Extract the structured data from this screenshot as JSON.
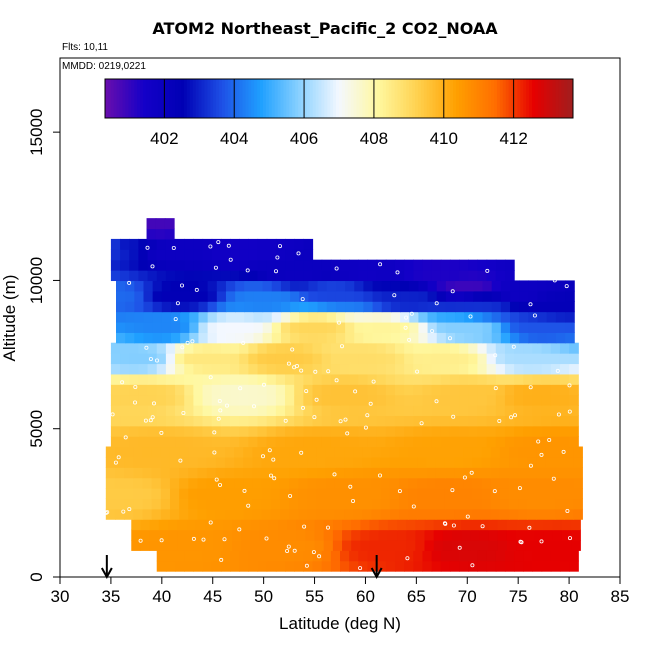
{
  "title": "ATOM2 Northeast_Pacific_2 CO2_NOAA",
  "flights_text": "Flts: 10,11",
  "mmdd_text": "MMDD: 0219,0221",
  "chart_data": {
    "type": "heatmap",
    "title": "ATOM2 Northeast_Pacific_2 CO2_NOAA",
    "xlabel": "Latitude (deg N)",
    "ylabel": "Altitude (m)",
    "xlim": [
      30,
      85
    ],
    "ylim": [
      0,
      17500
    ],
    "x_ticks": [
      30,
      35,
      40,
      45,
      50,
      55,
      60,
      65,
      70,
      75,
      80,
      85
    ],
    "y_ticks": [
      0,
      5000,
      10000,
      15000
    ],
    "colorbar": {
      "range": [
        400.3,
        413.7
      ],
      "ticks": [
        402,
        404,
        406,
        408,
        410,
        412
      ],
      "colors": [
        "#6a0dad",
        "#1400c8",
        "#0000b4",
        "#1e50e6",
        "#1fa0ff",
        "#8cd2ff",
        "#f4f8ff",
        "#fff8a0",
        "#ffd250",
        "#ffa000",
        "#ff6e00",
        "#e60000",
        "#a01e1e"
      ]
    },
    "profile_markers_lat": [
      34.6,
      61.1
    ],
    "cells": [
      [
        35.0,
        10700,
        11500,
        403.8
      ],
      [
        36.0,
        10700,
        11500,
        402.6
      ],
      [
        39.0,
        11800,
        12000,
        400.8
      ],
      [
        40.5,
        10500,
        11500,
        401.8
      ],
      [
        48.0,
        10500,
        11500,
        401.6
      ],
      [
        53.5,
        10000,
        10600,
        401.9
      ],
      [
        60.0,
        10000,
        10600,
        401.7
      ],
      [
        67.0,
        10000,
        10600,
        401.3
      ],
      [
        70.0,
        9500,
        10000,
        400.9
      ],
      [
        75.5,
        9200,
        10000,
        401.8
      ],
      [
        35.0,
        9000,
        10000,
        404.0
      ],
      [
        42.0,
        9000,
        10000,
        402.4
      ],
      [
        50.0,
        9000,
        9800,
        404.3
      ],
      [
        57.0,
        9200,
        10000,
        403.5
      ],
      [
        64.0,
        9000,
        9800,
        403.0
      ],
      [
        71.0,
        8800,
        9600,
        403.2
      ],
      [
        78.0,
        8800,
        9600,
        402.3
      ],
      [
        40.0,
        8000,
        8800,
        404.4
      ],
      [
        47.0,
        8000,
        8800,
        407.0
      ],
      [
        55.0,
        8000,
        8800,
        409.1
      ],
      [
        62.0,
        8000,
        8800,
        408.2
      ],
      [
        70.0,
        8000,
        8800,
        405.8
      ],
      [
        77.0,
        8000,
        8800,
        403.7
      ],
      [
        38.0,
        7000,
        7800,
        405.8
      ],
      [
        44.0,
        7000,
        7800,
        408.6
      ],
      [
        52.0,
        7000,
        7800,
        409.4
      ],
      [
        60.0,
        7000,
        7800,
        408.9
      ],
      [
        68.0,
        7000,
        7800,
        408.4
      ],
      [
        76.0,
        7000,
        7800,
        406.2
      ],
      [
        38.0,
        5500,
        6800,
        409.2
      ],
      [
        48.0,
        5500,
        6800,
        407.6
      ],
      [
        58.0,
        5500,
        6800,
        409.6
      ],
      [
        70.0,
        5500,
        6800,
        409.5
      ],
      [
        77.0,
        5500,
        6800,
        410.0
      ],
      [
        40.0,
        3500,
        5000,
        409.8
      ],
      [
        55.0,
        3500,
        5000,
        410.2
      ],
      [
        68.0,
        3500,
        5000,
        410.3
      ],
      [
        78.0,
        3500,
        5000,
        410.6
      ],
      [
        36.0,
        2000,
        3500,
        409.4
      ],
      [
        46.0,
        2000,
        3500,
        410.4
      ],
      [
        58.0,
        2000,
        3500,
        410.7
      ],
      [
        68.0,
        2000,
        3500,
        411.0
      ],
      [
        77.0,
        2000,
        3500,
        410.8
      ],
      [
        42.0,
        200,
        1800,
        410.6
      ],
      [
        52.0,
        200,
        1800,
        410.8
      ],
      [
        62.0,
        200,
        1800,
        412.2
      ],
      [
        70.0,
        200,
        1800,
        412.8
      ],
      [
        78.0,
        200,
        1800,
        412.6
      ]
    ]
  }
}
